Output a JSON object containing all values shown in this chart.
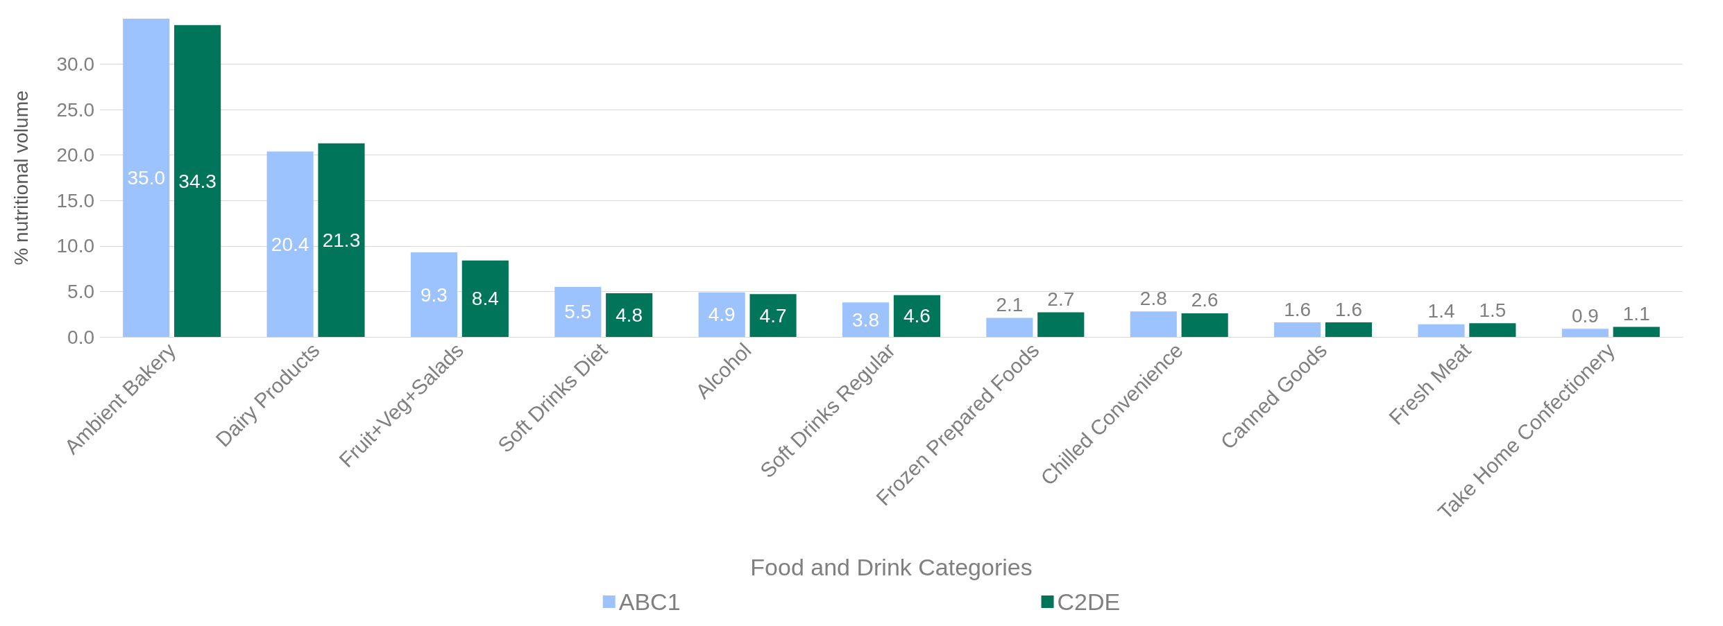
{
  "chart_data": {
    "type": "bar",
    "xlabel": "Food and Drink Categories",
    "ylabel": "% nutritional volume",
    "categories": [
      "Ambient Bakery",
      "Dairy Products",
      "Fruit+Veg+Salads",
      "Soft Drinks Diet",
      "Alcohol",
      "Soft Drinks Regular",
      "Frozen Prepared Foods",
      "Chilled Convenience",
      "Canned Goods",
      "Fresh Meat",
      "Take Home Confectionery"
    ],
    "series": [
      {
        "name": "ABC1",
        "color": "#9dc3ff",
        "values": [
          35.0,
          20.4,
          9.3,
          5.5,
          4.9,
          3.8,
          2.1,
          2.8,
          1.6,
          1.4,
          0.9
        ],
        "value_labels": [
          "35.0",
          "20.4",
          "9.3",
          "5.5",
          "4.9",
          "3.8",
          "2.1",
          "2.8",
          "1.6",
          "1.4",
          "0.9"
        ]
      },
      {
        "name": "C2DE",
        "color": "#00755a",
        "values": [
          34.3,
          21.3,
          8.4,
          4.8,
          4.7,
          4.6,
          2.7,
          2.6,
          1.6,
          1.5,
          1.1
        ],
        "value_labels": [
          "34.3",
          "21.3",
          "8.4",
          "4.8",
          "4.7",
          "4.6",
          "2.7",
          "2.6",
          "1.6",
          "1.5",
          "1.1"
        ]
      }
    ],
    "ylim": [
      0,
      35
    ],
    "yticks": [
      {
        "value": 0,
        "label": "0.0"
      },
      {
        "value": 5,
        "label": "5.0"
      },
      {
        "value": 10,
        "label": "10.0"
      },
      {
        "value": 15,
        "label": "15.0"
      },
      {
        "value": 20,
        "label": "20.0"
      },
      {
        "value": 25,
        "label": "25.0"
      },
      {
        "value": 30,
        "label": "30.0"
      }
    ],
    "grid": true,
    "legend": "bottom"
  }
}
